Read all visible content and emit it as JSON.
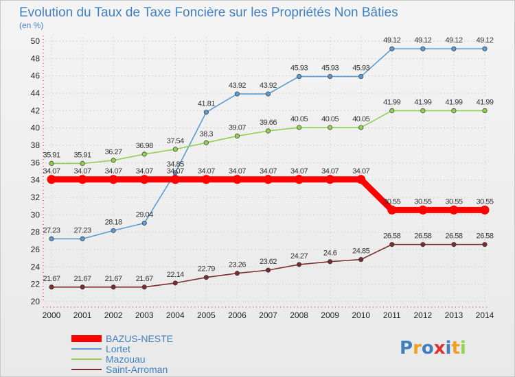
{
  "chart_data": {
    "type": "line",
    "title": "Evolution du Taux de Taxe Foncière sur les Propriétés Non Bâties",
    "subtitle": "(en %)",
    "xlabel": "",
    "ylabel": "",
    "categories": [
      "2000",
      "2001",
      "2002",
      "2003",
      "2004",
      "2005",
      "2006",
      "2007",
      "2008",
      "2009",
      "2010",
      "2011",
      "2012",
      "2013",
      "2014"
    ],
    "y_ticks": [
      20,
      22,
      24,
      26,
      28,
      30,
      32,
      34,
      36,
      38,
      40,
      42,
      44,
      46,
      48,
      50
    ],
    "ylim": [
      20,
      50
    ],
    "grid": true,
    "legend_position": "bottom-left",
    "series": [
      {
        "name": "BAZUS-NESTE",
        "color": "#ff0000",
        "emphasis": true,
        "values": [
          34.07,
          34.07,
          34.07,
          34.07,
          34.07,
          34.07,
          34.07,
          34.07,
          34.07,
          34.07,
          34.07,
          30.55,
          30.55,
          30.55,
          30.55
        ],
        "labels": [
          "34.07",
          "34.07",
          "34.07",
          "34.07",
          "34.07",
          "34.07",
          "34.07",
          "34.07",
          "34.07",
          "34.07",
          "34.07",
          "30.55",
          "30.55",
          "30.55",
          "30.55"
        ]
      },
      {
        "name": "Lortet",
        "color": "#5b9bd5",
        "values": [
          27.23,
          27.23,
          28.18,
          29.04,
          34.85,
          41.81,
          43.92,
          43.92,
          45.93,
          45.93,
          45.93,
          49.12,
          49.12,
          49.12,
          49.12
        ],
        "labels": [
          "27.23",
          "27.23",
          "28.18",
          "29.04",
          "34.85",
          "41.81",
          "43.92",
          "43.92",
          "45.93",
          "45.93",
          "45.93",
          "49.12",
          "49.12",
          "49.12",
          "49.12"
        ]
      },
      {
        "name": "Mazouau",
        "color": "#92d050",
        "values": [
          35.91,
          35.91,
          36.27,
          36.98,
          37.54,
          38.3,
          39.07,
          39.66,
          40.05,
          40.05,
          40.05,
          41.99,
          41.99,
          41.99,
          41.99
        ],
        "labels": [
          "35.91",
          "35.91",
          "36.27",
          "36.98",
          "37.54",
          "38.3",
          "39.07",
          "39.66",
          "40.05",
          "40.05",
          "40.05",
          "41.99",
          "41.99",
          "41.99",
          "41.99"
        ]
      },
      {
        "name": "Saint-Arroman",
        "color": "#7b2c2c",
        "values": [
          21.67,
          21.67,
          21.67,
          21.67,
          22.14,
          22.79,
          23.26,
          23.62,
          24.27,
          24.6,
          24.85,
          26.58,
          26.58,
          26.58,
          26.58
        ],
        "labels": [
          "21.67",
          "21.67",
          "21.67",
          "21.67",
          "22.14",
          "22.79",
          "23.26",
          "23.62",
          "24.27",
          "24.6",
          "24.85",
          "26.58",
          "26.58",
          "26.58",
          "26.58"
        ]
      }
    ]
  },
  "logo": {
    "text": "Proxiti",
    "colors": [
      "#3f7fc0",
      "#f0a020",
      "#3f7fc0",
      "#e03030",
      "#3f7fc0",
      "#f0a020",
      "#92d050"
    ]
  }
}
